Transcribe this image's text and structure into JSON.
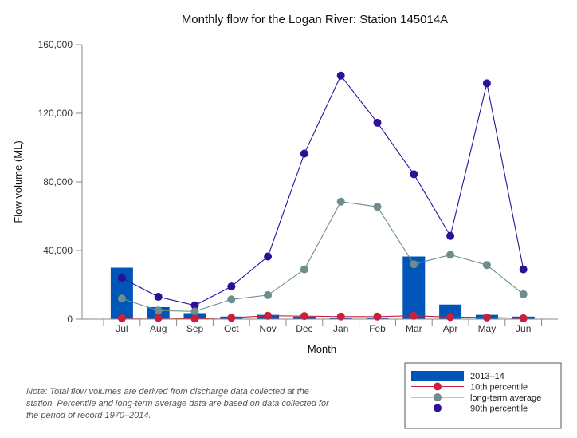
{
  "chart_data": {
    "type": "bar",
    "title": "Monthly flow for the Logan River: Station 145014A",
    "xlabel": "Month",
    "ylabel": "Flow volume (ML)",
    "ylim": [
      0,
      160000
    ],
    "yticks": [
      0,
      40000,
      80000,
      120000,
      160000
    ],
    "ytick_labels": [
      "0",
      "40,000",
      "80,000",
      "120,000",
      "160,000"
    ],
    "categories": [
      "Jul",
      "Aug",
      "Sep",
      "Oct",
      "Nov",
      "Dec",
      "Jan",
      "Feb",
      "Mar",
      "Apr",
      "May",
      "Jun"
    ],
    "bar_series": {
      "name": "2013–14",
      "color": "#0055b8",
      "values": [
        30000,
        7000,
        3500,
        1500,
        2500,
        1500,
        800,
        800,
        36500,
        8500,
        2500,
        1500
      ]
    },
    "line_series": [
      {
        "name": "10th percentile",
        "color": "#cc1f3c",
        "values": [
          500,
          700,
          300,
          800,
          2000,
          1800,
          1500,
          1500,
          2000,
          1200,
          1000,
          500
        ]
      },
      {
        "name": "long-term average",
        "color": "#6f8d8f",
        "values": [
          12000,
          5000,
          4500,
          11500,
          14000,
          29000,
          68500,
          65500,
          32000,
          37500,
          31500,
          14500
        ]
      },
      {
        "name": "90th percentile",
        "color": "#2e0f99",
        "values": [
          24000,
          13000,
          8000,
          19000,
          36500,
          96500,
          142000,
          114500,
          84500,
          48500,
          137500,
          29000
        ]
      }
    ],
    "legend_position": "bottom-right",
    "note": "Note: Total flow volumes are derived from discharge data collected at the station. Percentile and long-term average data are based on data collected for the period of record 1970–2014."
  }
}
